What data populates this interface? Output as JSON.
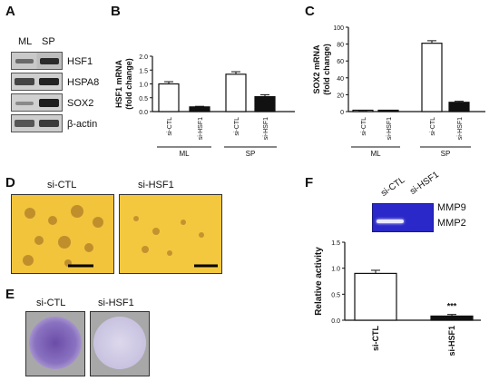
{
  "panel_labels": {
    "a": "A",
    "b": "B",
    "c": "C",
    "d": "D",
    "e": "E",
    "f": "F"
  },
  "panel_a": {
    "lane_labels": [
      "ML",
      "SP"
    ],
    "proteins": [
      "HSF1",
      "HSPA8",
      "SOX2",
      "β-actin"
    ]
  },
  "panel_d": {
    "left_label": "si-CTL",
    "right_label": "si-HSF1"
  },
  "panel_e": {
    "left_label": "si-CTL",
    "right_label": "si-HSF1"
  },
  "panel_f": {
    "gel_lane_labels": [
      "si-CTL",
      "si-HSF1"
    ],
    "gel_band_labels": [
      "MMP9",
      "MMP2"
    ],
    "significance": "***"
  },
  "chart_data": [
    {
      "id": "B",
      "type": "bar",
      "ylabel": "HSF1 mRNA (fold change)",
      "ylim": [
        0,
        2.0
      ],
      "yticks": [
        "0.0",
        "0.5",
        "1.0",
        "1.5",
        "2.0"
      ],
      "categories": [
        "si-CTL",
        "si-HSF1",
        "si-CTL",
        "si-HSF1"
      ],
      "groups": [
        {
          "label": "ML",
          "span": [
            0,
            1
          ]
        },
        {
          "label": "SP",
          "span": [
            2,
            3
          ]
        }
      ],
      "values": [
        1.0,
        0.17,
        1.35,
        0.54
      ],
      "errors": [
        0.08,
        0.02,
        0.09,
        0.07
      ],
      "colors": [
        "#ffffff",
        "#111111",
        "#ffffff",
        "#111111"
      ]
    },
    {
      "id": "C",
      "type": "bar",
      "ylabel": "SOX2 mRNA (fold change)",
      "ylim": [
        0,
        100
      ],
      "yticks": [
        "0",
        "20",
        "40",
        "60",
        "80",
        "100"
      ],
      "categories": [
        "si-CTL",
        "si-HSF1",
        "si-CTL",
        "si-HSF1"
      ],
      "groups": [
        {
          "label": "ML",
          "span": [
            0,
            1
          ]
        },
        {
          "label": "SP",
          "span": [
            2,
            3
          ]
        }
      ],
      "values": [
        1.0,
        0.3,
        81,
        11
      ],
      "errors": [
        0.3,
        0.1,
        3,
        1.2
      ],
      "colors": [
        "#ffffff",
        "#111111",
        "#ffffff",
        "#111111"
      ]
    },
    {
      "id": "F",
      "type": "bar",
      "ylabel": "Relative activity",
      "ylim": [
        0,
        1.5
      ],
      "yticks": [
        "0.0",
        "0.5",
        "1.0",
        "1.5"
      ],
      "categories": [
        "si-CTL",
        "si-HSF1"
      ],
      "values": [
        0.9,
        0.08
      ],
      "errors": [
        0.06,
        0.03
      ],
      "colors": [
        "#ffffff",
        "#111111"
      ]
    }
  ]
}
